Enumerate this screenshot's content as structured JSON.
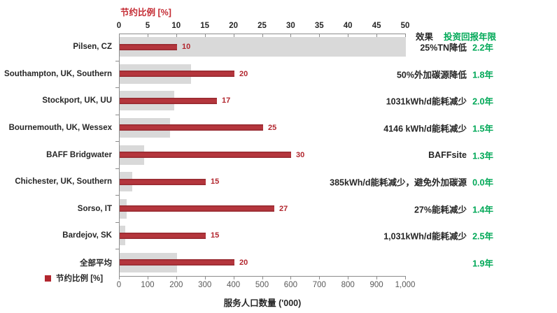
{
  "colors": {
    "bar_red": "#B2262E",
    "bar_gray": "#D9D9D9",
    "green": "#00A857",
    "title_red": "#C42A32",
    "axis_gray": "#8C8C8C"
  },
  "legend": {
    "label": "节约比例 [%]"
  },
  "right_panel": {
    "effect_header": "效果",
    "payback_header": "投资回报年限"
  },
  "chart_data": {
    "type": "bar",
    "orientation": "horizontal",
    "grid": false,
    "legend_position": "bottom-left",
    "categories": [
      "Pilsen, CZ",
      "Southampton, UK, Southern",
      "Stockport, UK, UU",
      "Bournemouth, UK, Wessex",
      "BAFF Bridgwater",
      "Chichester, UK, Southern",
      "Sorso, IT",
      "Bardejov, SK",
      "全部平均"
    ],
    "series": [
      {
        "name": "节约比例 [%]",
        "axis": "top",
        "unit": "%",
        "values": [
          10,
          20,
          17,
          25,
          30,
          15,
          27,
          15,
          20
        ]
      },
      {
        "name": "服务人口数量 ('000)",
        "axis": "bottom",
        "unit": "'000",
        "values": [
          1000,
          250,
          190,
          175,
          85,
          45,
          25,
          20,
          200
        ]
      }
    ],
    "rows": [
      {
        "effect": "25%TN降低",
        "payback": "2.2年"
      },
      {
        "effect": "50%外加碳源降低",
        "payback": "1.8年"
      },
      {
        "effect": "1031kWh/d能耗减少",
        "payback": "2.0年"
      },
      {
        "effect": "4146 kWh/d能耗减少",
        "payback": "1.5年"
      },
      {
        "effect": "BAFFsite",
        "payback": "1.3年"
      },
      {
        "effect": "385kWh/d能耗减少，避免外加碳源",
        "payback": "0.0年"
      },
      {
        "effect": "27%能耗减少",
        "payback": "1.4年"
      },
      {
        "effect": "1,031kWh/d能耗减少",
        "payback": "2.5年"
      },
      {
        "effect": "",
        "payback": "1.9年"
      }
    ],
    "top_axis": {
      "label": "节约比例 [%]",
      "min": 0,
      "max": 50,
      "ticks": [
        "0",
        "5",
        "10",
        "15",
        "20",
        "25",
        "30",
        "35",
        "40",
        "45",
        "50"
      ]
    },
    "bottom_axis": {
      "label": "服务人口数量 ('000)",
      "min": 0,
      "max": 1000,
      "ticks": [
        "0",
        "100",
        "200",
        "300",
        "400",
        "500",
        "600",
        "700",
        "800",
        "900",
        "1,000"
      ]
    }
  }
}
